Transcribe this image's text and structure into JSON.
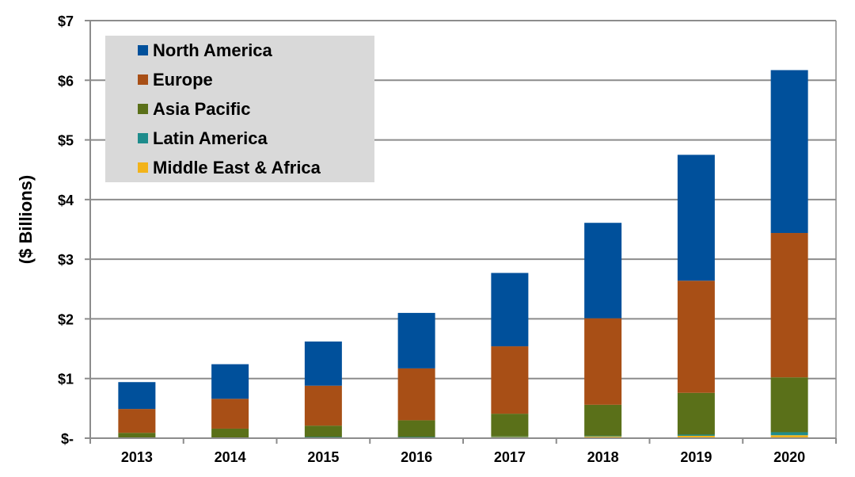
{
  "chart_data": {
    "type": "bar",
    "stacked": true,
    "title": "",
    "xlabel": "",
    "ylabel": "($ Billions)",
    "ylim": [
      0,
      7
    ],
    "yticks": [
      {
        "value": 0,
        "label": "$-"
      },
      {
        "value": 1,
        "label": "$1"
      },
      {
        "value": 2,
        "label": "$2"
      },
      {
        "value": 3,
        "label": "$3"
      },
      {
        "value": 4,
        "label": "$4"
      },
      {
        "value": 5,
        "label": "$5"
      },
      {
        "value": 6,
        "label": "$6"
      },
      {
        "value": 7,
        "label": "$7"
      }
    ],
    "grid": true,
    "legend_position": "top-left",
    "categories": [
      "2013",
      "2014",
      "2015",
      "2016",
      "2017",
      "2018",
      "2019",
      "2020"
    ],
    "series": [
      {
        "name": "Middle East & Africa",
        "color": "#F2B31A",
        "values": [
          0.0,
          0.01,
          0.01,
          0.01,
          0.02,
          0.03,
          0.04,
          0.05
        ]
      },
      {
        "name": "Latin America",
        "color": "#1E8C8C",
        "values": [
          0.0,
          0.0,
          0.01,
          0.01,
          0.01,
          0.01,
          0.02,
          0.05
        ]
      },
      {
        "name": "Asia Pacific",
        "color": "#5A7019",
        "values": [
          0.09,
          0.15,
          0.19,
          0.28,
          0.38,
          0.52,
          0.7,
          0.92
        ]
      },
      {
        "name": "Europe",
        "color": "#A84F16",
        "values": [
          0.4,
          0.5,
          0.67,
          0.87,
          1.13,
          1.45,
          1.88,
          2.42
        ]
      },
      {
        "name": "North America",
        "color": "#00509B",
        "values": [
          0.45,
          0.58,
          0.74,
          0.93,
          1.23,
          1.6,
          2.11,
          2.73
        ]
      }
    ],
    "legend_order": [
      "North America",
      "Europe",
      "Asia Pacific",
      "Latin America",
      "Middle East & Africa"
    ]
  }
}
